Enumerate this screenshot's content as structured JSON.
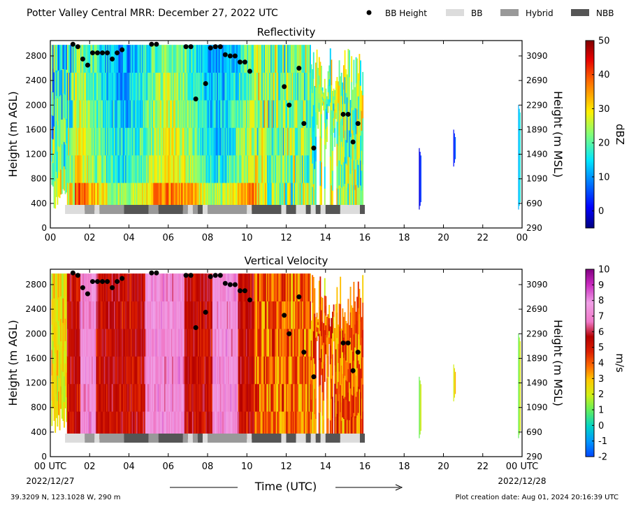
{
  "header": {
    "title": "Potter Valley Central MRR:  December 27, 2022 UTC"
  },
  "legend": {
    "items": [
      {
        "label": "BB Height",
        "kind": "dot",
        "color": "#000000"
      },
      {
        "label": "BB",
        "kind": "box",
        "color": "#dcdcdc"
      },
      {
        "label": "Hybrid",
        "kind": "box",
        "color": "#999999"
      },
      {
        "label": "NBB",
        "kind": "box",
        "color": "#555555"
      }
    ]
  },
  "footer": {
    "location": "39.3209 N, 123.1028 W, 290 m",
    "created": "Plot creation date: Aug 01, 2024 20:16:39 UTC",
    "x_start_date": "2022/12/27",
    "x_end_date": "2022/12/28"
  },
  "chart_data": [
    {
      "type": "heatmap",
      "title": "Reflectivity",
      "ylabel": "Height (m AGL)",
      "ylabel_right": "Height (m MSL)",
      "colorbar_label": "dBZ",
      "colorbar_ticks": [
        "50",
        "40",
        "30",
        "20",
        "10",
        "0"
      ],
      "colorbar_range": [
        -5,
        50
      ],
      "colormap": "jet",
      "x_ticks": [
        "00",
        "02",
        "04",
        "06",
        "08",
        "10",
        "12",
        "14",
        "16",
        "18",
        "20",
        "22",
        "00"
      ],
      "xlim": [
        0,
        24
      ],
      "ylim": [
        0,
        3050
      ],
      "y_ticks": [
        "0",
        "400",
        "800",
        "1200",
        "1600",
        "2000",
        "2400",
        "2800"
      ],
      "y_ticks_right": [
        "290",
        "690",
        "1090",
        "1490",
        "1890",
        "2290",
        "2690",
        "3090"
      ],
      "field": "reflectivity"
    },
    {
      "type": "heatmap",
      "title": "Vertical Velocity",
      "ylabel": "Height (m AGL)",
      "ylabel_right": "Height (m MSL)",
      "xlabel": "Time (UTC)",
      "colorbar_label": "m/s",
      "colorbar_ticks": [
        "10",
        "9",
        "8",
        "7",
        "6",
        "5",
        "4",
        "3",
        "2",
        "1",
        "0",
        "-1",
        "-2"
      ],
      "colorbar_range": [
        -2,
        10
      ],
      "colormap": "velocity",
      "x_ticks": [
        "00 UTC",
        "02",
        "04",
        "06",
        "08",
        "10",
        "12",
        "14",
        "16",
        "18",
        "20",
        "22",
        "00 UTC"
      ],
      "xlim": [
        0,
        24
      ],
      "ylim": [
        0,
        3050
      ],
      "y_ticks": [
        "0",
        "400",
        "800",
        "1200",
        "1600",
        "2000",
        "2400",
        "2800"
      ],
      "y_ticks_right": [
        "290",
        "690",
        "1090",
        "1490",
        "1890",
        "2290",
        "2690",
        "3090"
      ],
      "field": "velocity"
    }
  ],
  "bb_heights": [
    {
      "t": 1.15,
      "h": 2990
    },
    {
      "t": 1.4,
      "h": 2950
    },
    {
      "t": 1.65,
      "h": 2750
    },
    {
      "t": 1.9,
      "h": 2650
    },
    {
      "t": 2.15,
      "h": 2850
    },
    {
      "t": 2.4,
      "h": 2850
    },
    {
      "t": 2.65,
      "h": 2850
    },
    {
      "t": 2.9,
      "h": 2850
    },
    {
      "t": 3.15,
      "h": 2750
    },
    {
      "t": 3.4,
      "h": 2850
    },
    {
      "t": 3.65,
      "h": 2900
    },
    {
      "t": 5.15,
      "h": 2990
    },
    {
      "t": 5.4,
      "h": 2990
    },
    {
      "t": 6.9,
      "h": 2950
    },
    {
      "t": 7.15,
      "h": 2950
    },
    {
      "t": 7.4,
      "h": 2100
    },
    {
      "t": 7.9,
      "h": 2350
    },
    {
      "t": 8.15,
      "h": 2930
    },
    {
      "t": 8.4,
      "h": 2950
    },
    {
      "t": 8.65,
      "h": 2950
    },
    {
      "t": 8.9,
      "h": 2820
    },
    {
      "t": 9.15,
      "h": 2800
    },
    {
      "t": 9.4,
      "h": 2800
    },
    {
      "t": 9.65,
      "h": 2700
    },
    {
      "t": 9.9,
      "h": 2700
    },
    {
      "t": 10.15,
      "h": 2550
    },
    {
      "t": 11.9,
      "h": 2300
    },
    {
      "t": 12.15,
      "h": 2000
    },
    {
      "t": 12.65,
      "h": 2600
    },
    {
      "t": 12.9,
      "h": 1700
    },
    {
      "t": 13.4,
      "h": 1300
    },
    {
      "t": 14.9,
      "h": 1850
    },
    {
      "t": 15.15,
      "h": 1850
    },
    {
      "t": 15.4,
      "h": 1400
    },
    {
      "t": 15.65,
      "h": 1700
    }
  ],
  "bb_type_bar": [
    {
      "start": 0.75,
      "end": 1.75,
      "type": "BB"
    },
    {
      "start": 1.75,
      "end": 2.25,
      "type": "Hybrid"
    },
    {
      "start": 2.25,
      "end": 2.5,
      "type": "BB"
    },
    {
      "start": 2.5,
      "end": 3.75,
      "type": "Hybrid"
    },
    {
      "start": 3.75,
      "end": 5.0,
      "type": "NBB"
    },
    {
      "start": 5.0,
      "end": 5.5,
      "type": "Hybrid"
    },
    {
      "start": 5.5,
      "end": 6.75,
      "type": "NBB"
    },
    {
      "start": 6.75,
      "end": 7.0,
      "type": "Hybrid"
    },
    {
      "start": 7.0,
      "end": 7.25,
      "type": "BB"
    },
    {
      "start": 7.25,
      "end": 7.5,
      "type": "Hybrid"
    },
    {
      "start": 7.5,
      "end": 7.75,
      "type": "NBB"
    },
    {
      "start": 7.75,
      "end": 8.0,
      "type": "BB"
    },
    {
      "start": 8.0,
      "end": 10.0,
      "type": "Hybrid"
    },
    {
      "start": 10.0,
      "end": 10.25,
      "type": "BB"
    },
    {
      "start": 10.25,
      "end": 11.75,
      "type": "NBB"
    },
    {
      "start": 11.75,
      "end": 12.0,
      "type": "BB"
    },
    {
      "start": 12.0,
      "end": 12.5,
      "type": "NBB"
    },
    {
      "start": 12.5,
      "end": 13.0,
      "type": "BB"
    },
    {
      "start": 13.0,
      "end": 13.25,
      "type": "NBB"
    },
    {
      "start": 13.25,
      "end": 13.5,
      "type": "BB"
    },
    {
      "start": 13.5,
      "end": 13.75,
      "type": "NBB"
    },
    {
      "start": 13.75,
      "end": 14.0,
      "type": "BB"
    },
    {
      "start": 14.0,
      "end": 14.75,
      "type": "NBB"
    },
    {
      "start": 14.75,
      "end": 15.75,
      "type": "BB"
    },
    {
      "start": 15.75,
      "end": 16.0,
      "type": "NBB"
    }
  ]
}
